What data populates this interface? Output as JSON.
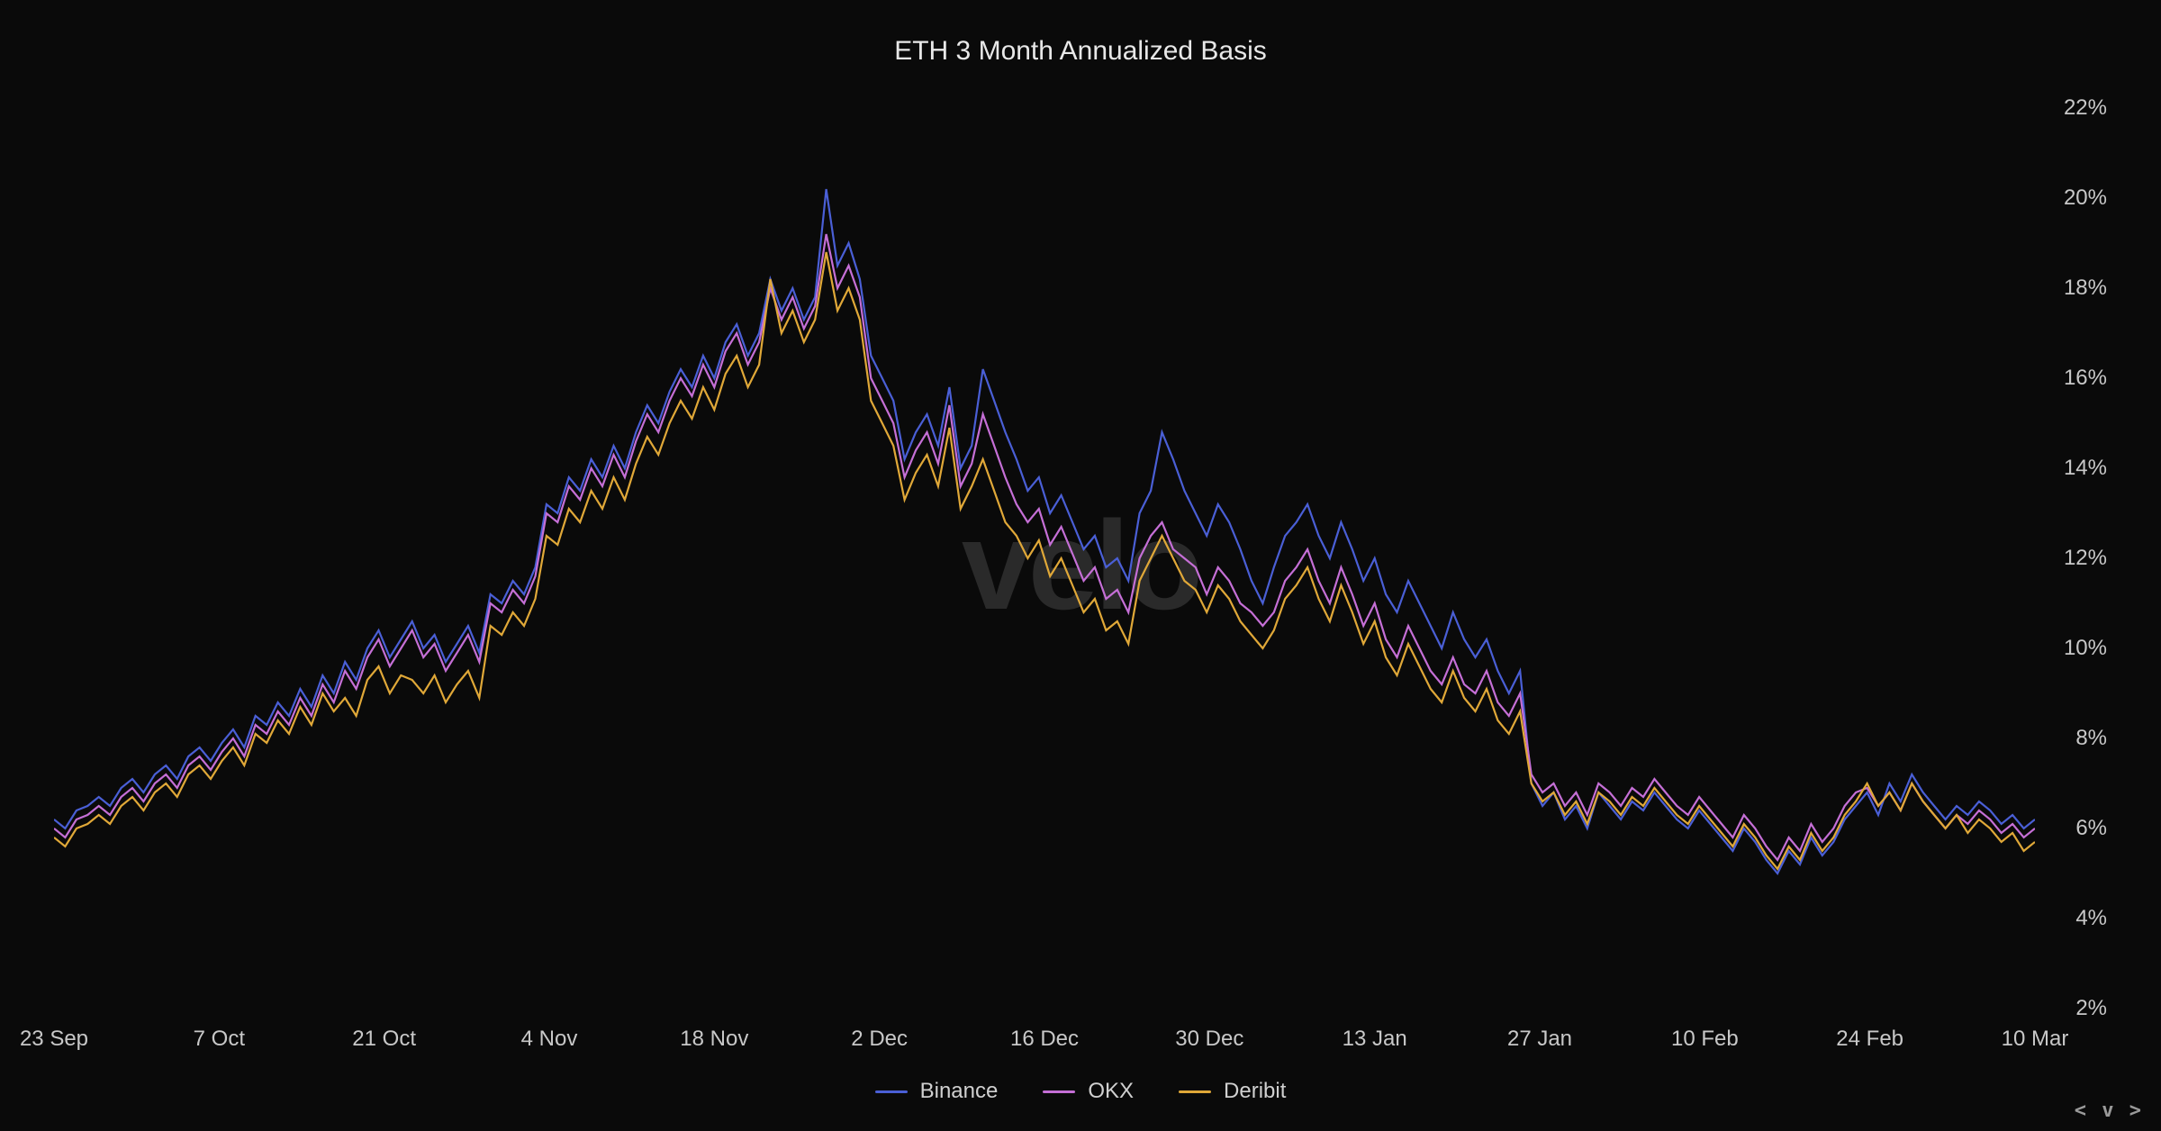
{
  "chart": {
    "type": "line",
    "title": "ETH 3 Month Annualized Basis",
    "background_color": "#0a0a0a",
    "title_color": "#e8e8e8",
    "title_fontsize": 30,
    "tick_color": "#c8c8c8",
    "tick_fontsize": 24,
    "line_width": 2.2,
    "watermark": "velo",
    "watermark_color": "#2a2a2a",
    "brand_mark": "< v >",
    "y_axis": {
      "min": 2,
      "max": 22,
      "step": 2,
      "suffix": "%",
      "ticks": [
        2,
        4,
        6,
        8,
        10,
        12,
        14,
        16,
        18,
        20,
        22
      ]
    },
    "x_axis": {
      "labels": [
        "23 Sep",
        "7 Oct",
        "21 Oct",
        "4 Nov",
        "18 Nov",
        "2 Dec",
        "16 Dec",
        "30 Dec",
        "13 Jan",
        "27 Jan",
        "10 Feb",
        "24 Feb",
        "10 Mar"
      ]
    },
    "series": [
      {
        "name": "Binance",
        "color": "#4a5fd6",
        "data": [
          6.2,
          6.0,
          6.4,
          6.5,
          6.7,
          6.5,
          6.9,
          7.1,
          6.8,
          7.2,
          7.4,
          7.1,
          7.6,
          7.8,
          7.5,
          7.9,
          8.2,
          7.8,
          8.5,
          8.3,
          8.8,
          8.5,
          9.1,
          8.7,
          9.4,
          9.0,
          9.7,
          9.3,
          10.0,
          10.4,
          9.8,
          10.2,
          10.6,
          10.0,
          10.3,
          9.7,
          10.1,
          10.5,
          9.9,
          11.2,
          11.0,
          11.5,
          11.2,
          11.8,
          13.2,
          13.0,
          13.8,
          13.5,
          14.2,
          13.8,
          14.5,
          14.0,
          14.8,
          15.4,
          15.0,
          15.7,
          16.2,
          15.8,
          16.5,
          16.0,
          16.8,
          17.2,
          16.5,
          17.0,
          18.2,
          17.5,
          18.0,
          17.3,
          17.8,
          20.2,
          18.5,
          19.0,
          18.2,
          16.5,
          16.0,
          15.5,
          14.2,
          14.8,
          15.2,
          14.5,
          15.8,
          14.0,
          14.5,
          16.2,
          15.5,
          14.8,
          14.2,
          13.5,
          13.8,
          13.0,
          13.4,
          12.8,
          12.2,
          12.5,
          11.8,
          12.0,
          11.5,
          13.0,
          13.5,
          14.8,
          14.2,
          13.5,
          13.0,
          12.5,
          13.2,
          12.8,
          12.2,
          11.5,
          11.0,
          11.8,
          12.5,
          12.8,
          13.2,
          12.5,
          12.0,
          12.8,
          12.2,
          11.5,
          12.0,
          11.2,
          10.8,
          11.5,
          11.0,
          10.5,
          10.0,
          10.8,
          10.2,
          9.8,
          10.2,
          9.5,
          9.0,
          9.5,
          7.0,
          6.5,
          6.8,
          6.2,
          6.5,
          6.0,
          6.8,
          6.5,
          6.2,
          6.6,
          6.4,
          6.8,
          6.5,
          6.2,
          6.0,
          6.4,
          6.1,
          5.8,
          5.5,
          6.0,
          5.7,
          5.3,
          5.0,
          5.5,
          5.2,
          5.8,
          5.4,
          5.7,
          6.2,
          6.5,
          6.8,
          6.3,
          7.0,
          6.6,
          7.2,
          6.8,
          6.5,
          6.2,
          6.5,
          6.3,
          6.6,
          6.4,
          6.1,
          6.3,
          6.0,
          6.2
        ]
      },
      {
        "name": "OKX",
        "color": "#c56fd6",
        "data": [
          6.0,
          5.8,
          6.2,
          6.3,
          6.5,
          6.3,
          6.7,
          6.9,
          6.6,
          7.0,
          7.2,
          6.9,
          7.4,
          7.6,
          7.3,
          7.7,
          8.0,
          7.6,
          8.3,
          8.1,
          8.6,
          8.3,
          8.9,
          8.5,
          9.2,
          8.8,
          9.5,
          9.1,
          9.8,
          10.2,
          9.6,
          10.0,
          10.4,
          9.8,
          10.1,
          9.5,
          9.9,
          10.3,
          9.7,
          11.0,
          10.8,
          11.3,
          11.0,
          11.6,
          13.0,
          12.8,
          13.6,
          13.3,
          14.0,
          13.6,
          14.3,
          13.8,
          14.6,
          15.2,
          14.8,
          15.5,
          16.0,
          15.6,
          16.3,
          15.8,
          16.6,
          17.0,
          16.3,
          16.8,
          18.0,
          17.3,
          17.8,
          17.1,
          17.6,
          19.2,
          18.0,
          18.5,
          17.8,
          16.0,
          15.5,
          15.0,
          13.8,
          14.4,
          14.8,
          14.1,
          15.4,
          13.6,
          14.1,
          15.2,
          14.5,
          13.8,
          13.2,
          12.8,
          13.1,
          12.3,
          12.7,
          12.1,
          11.5,
          11.8,
          11.1,
          11.3,
          10.8,
          12.0,
          12.5,
          12.8,
          12.2,
          12.0,
          11.8,
          11.2,
          11.8,
          11.5,
          11.0,
          10.8,
          10.5,
          10.8,
          11.5,
          11.8,
          12.2,
          11.5,
          11.0,
          11.8,
          11.2,
          10.5,
          11.0,
          10.2,
          9.8,
          10.5,
          10.0,
          9.5,
          9.2,
          9.8,
          9.2,
          9.0,
          9.5,
          8.8,
          8.5,
          9.0,
          7.2,
          6.8,
          7.0,
          6.5,
          6.8,
          6.3,
          7.0,
          6.8,
          6.5,
          6.9,
          6.7,
          7.1,
          6.8,
          6.5,
          6.3,
          6.7,
          6.4,
          6.1,
          5.8,
          6.3,
          6.0,
          5.6,
          5.3,
          5.8,
          5.5,
          6.1,
          5.7,
          6.0,
          6.5,
          6.8,
          6.9,
          6.5,
          6.8,
          6.4,
          7.0,
          6.6,
          6.3,
          6.0,
          6.3,
          6.1,
          6.4,
          6.2,
          5.9,
          6.1,
          5.8,
          6.0
        ]
      },
      {
        "name": "Deribit",
        "color": "#e0a838",
        "data": [
          5.8,
          5.6,
          6.0,
          6.1,
          6.3,
          6.1,
          6.5,
          6.7,
          6.4,
          6.8,
          7.0,
          6.7,
          7.2,
          7.4,
          7.1,
          7.5,
          7.8,
          7.4,
          8.1,
          7.9,
          8.4,
          8.1,
          8.7,
          8.3,
          9.0,
          8.6,
          8.9,
          8.5,
          9.3,
          9.6,
          9.0,
          9.4,
          9.3,
          9.0,
          9.4,
          8.8,
          9.2,
          9.5,
          8.9,
          10.5,
          10.3,
          10.8,
          10.5,
          11.1,
          12.5,
          12.3,
          13.1,
          12.8,
          13.5,
          13.1,
          13.8,
          13.3,
          14.1,
          14.7,
          14.3,
          15.0,
          15.5,
          15.1,
          15.8,
          15.3,
          16.1,
          16.5,
          15.8,
          16.3,
          18.2,
          17.0,
          17.5,
          16.8,
          17.3,
          18.8,
          17.5,
          18.0,
          17.3,
          15.5,
          15.0,
          14.5,
          13.3,
          13.9,
          14.3,
          13.6,
          14.9,
          13.1,
          13.6,
          14.2,
          13.5,
          12.8,
          12.5,
          12.0,
          12.4,
          11.6,
          12.0,
          11.4,
          10.8,
          11.1,
          10.4,
          10.6,
          10.1,
          11.5,
          12.0,
          12.5,
          12.0,
          11.5,
          11.3,
          10.8,
          11.4,
          11.1,
          10.6,
          10.3,
          10.0,
          10.4,
          11.1,
          11.4,
          11.8,
          11.1,
          10.6,
          11.4,
          10.8,
          10.1,
          10.6,
          9.8,
          9.4,
          10.1,
          9.6,
          9.1,
          8.8,
          9.5,
          8.9,
          8.6,
          9.1,
          8.4,
          8.1,
          8.6,
          7.0,
          6.6,
          6.8,
          6.3,
          6.6,
          6.1,
          6.8,
          6.6,
          6.3,
          6.7,
          6.5,
          6.9,
          6.6,
          6.3,
          6.1,
          6.5,
          6.2,
          5.9,
          5.6,
          6.1,
          5.8,
          5.4,
          5.1,
          5.6,
          5.3,
          5.9,
          5.5,
          5.8,
          6.3,
          6.6,
          7.0,
          6.5,
          6.8,
          6.4,
          7.0,
          6.6,
          6.3,
          6.0,
          6.3,
          5.9,
          6.2,
          6.0,
          5.7,
          5.9,
          5.5,
          5.7
        ]
      }
    ]
  }
}
